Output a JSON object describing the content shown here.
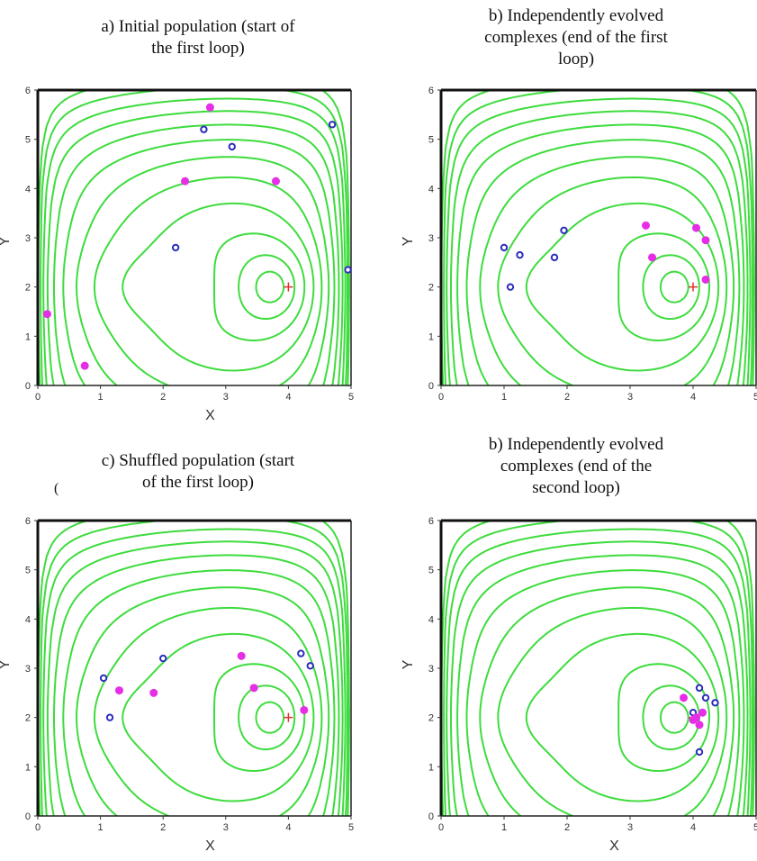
{
  "figure": {
    "contour_color": "#3ddc3d",
    "blue_point_color": "#2d2dbb",
    "magenta_point_color": "#e62ee6",
    "optimum_marker_color": "#e23030",
    "optimum": [
      4,
      2
    ],
    "stray_glyph": "("
  },
  "chart_data": [
    {
      "type": "scatter",
      "title_lines": [
        "a) Initial population (start of",
        "the first loop)"
      ],
      "xlabel": "X",
      "ylabel": "Y",
      "xlim": [
        0,
        5
      ],
      "ylim": [
        0,
        6
      ],
      "xticks": [
        "0",
        "1",
        "2",
        "3",
        "4",
        "5"
      ],
      "yticks": [
        "0",
        "1",
        "2",
        "3",
        "4",
        "5",
        "6"
      ],
      "background": "contour lines",
      "series": [
        {
          "color": "blue",
          "points": [
            [
              2.65,
              5.2
            ],
            [
              3.1,
              4.85
            ],
            [
              4.7,
              5.3
            ],
            [
              2.2,
              2.8
            ],
            [
              4.95,
              2.35
            ]
          ]
        },
        {
          "color": "magenta",
          "points": [
            [
              2.75,
              5.65
            ],
            [
              2.35,
              4.15
            ],
            [
              3.8,
              4.15
            ],
            [
              0.15,
              1.45
            ],
            [
              0.75,
              0.4
            ]
          ]
        }
      ]
    },
    {
      "type": "scatter",
      "title_lines": [
        "b) Independently evolved",
        "complexes (end of the first",
        "loop)"
      ],
      "xlabel": "",
      "ylabel": "Y",
      "xlim": [
        0,
        5
      ],
      "ylim": [
        0,
        6
      ],
      "xticks": [
        "0",
        "1",
        "2",
        "3",
        "4",
        "5"
      ],
      "yticks": [
        "0",
        "1",
        "2",
        "3",
        "4",
        "5",
        "6"
      ],
      "background": "contour lines",
      "series": [
        {
          "color": "blue",
          "points": [
            [
              1.0,
              2.8
            ],
            [
              1.25,
              2.65
            ],
            [
              1.1,
              2.0
            ],
            [
              1.8,
              2.6
            ],
            [
              1.95,
              3.15
            ]
          ]
        },
        {
          "color": "magenta",
          "points": [
            [
              3.25,
              3.25
            ],
            [
              3.35,
              2.6
            ],
            [
              4.05,
              3.2
            ],
            [
              4.2,
              2.95
            ],
            [
              4.2,
              2.15
            ]
          ]
        }
      ]
    },
    {
      "type": "scatter",
      "title_lines": [
        "c) Shuffled population (start",
        "of the first loop)"
      ],
      "xlabel": "X",
      "ylabel": "Y",
      "xlim": [
        0,
        5
      ],
      "ylim": [
        0,
        6
      ],
      "xticks": [
        "0",
        "1",
        "2",
        "3",
        "4",
        "5"
      ],
      "yticks": [
        "0",
        "1",
        "2",
        "3",
        "4",
        "5",
        "6"
      ],
      "background": "contour lines",
      "series": [
        {
          "color": "blue",
          "points": [
            [
              1.05,
              2.8
            ],
            [
              1.15,
              2.0
            ],
            [
              2.0,
              3.2
            ],
            [
              4.2,
              3.3
            ],
            [
              4.35,
              3.05
            ]
          ]
        },
        {
          "color": "magenta",
          "points": [
            [
              1.3,
              2.55
            ],
            [
              1.85,
              2.5
            ],
            [
              3.25,
              3.25
            ],
            [
              3.45,
              2.6
            ],
            [
              4.25,
              2.15
            ]
          ]
        }
      ]
    },
    {
      "type": "scatter",
      "title_lines": [
        "b) Independently evolved",
        "complexes (end of the",
        "second loop)"
      ],
      "xlabel": "X",
      "ylabel": "Y",
      "xlim": [
        0,
        5
      ],
      "ylim": [
        0,
        6
      ],
      "xticks": [
        "0",
        "1",
        "2",
        "3",
        "4",
        "5"
      ],
      "yticks": [
        "0",
        "1",
        "2",
        "3",
        "4",
        "5",
        "6"
      ],
      "background": "contour lines",
      "series": [
        {
          "color": "blue",
          "points": [
            [
              4.1,
              2.6
            ],
            [
              4.2,
              2.4
            ],
            [
              4.35,
              2.3
            ],
            [
              4.0,
              2.1
            ],
            [
              4.1,
              1.3
            ]
          ]
        },
        {
          "color": "magenta",
          "points": [
            [
              3.85,
              2.4
            ],
            [
              4.15,
              2.1
            ],
            [
              4.0,
              1.95
            ],
            [
              4.1,
              1.85
            ],
            [
              4.05,
              2.0
            ]
          ]
        }
      ]
    }
  ]
}
